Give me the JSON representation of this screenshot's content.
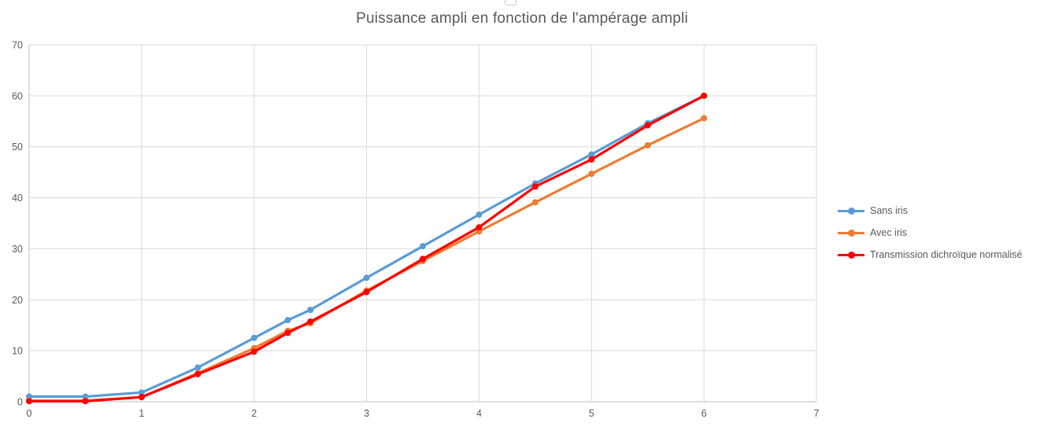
{
  "chart": {
    "title": "Puissance ampli en fonction de l'ampérage ampli"
  },
  "chart_data": {
    "type": "line",
    "title": "Puissance ampli en fonction de l'ampérage ampli",
    "xlabel": "",
    "ylabel": "",
    "xlim": [
      0,
      7
    ],
    "ylim": [
      0,
      70
    ],
    "x_ticks": [
      0,
      1,
      2,
      3,
      4,
      5,
      6,
      7
    ],
    "y_ticks": [
      0,
      10,
      20,
      30,
      40,
      50,
      60,
      70
    ],
    "grid": true,
    "legend_position": "right",
    "x": [
      0,
      0.5,
      1,
      1.5,
      2,
      2.3,
      2.5,
      3,
      3.5,
      4,
      4.5,
      5,
      5.5,
      6
    ],
    "series": [
      {
        "name": "Sans iris",
        "color": "#5B9BD5",
        "values": [
          1.0,
          1.0,
          1.8,
          6.7,
          12.5,
          16.0,
          18.0,
          24.3,
          30.5,
          36.7,
          42.8,
          48.5,
          54.6,
          60.0
        ]
      },
      {
        "name": "Avec iris",
        "color": "#ED7D31",
        "values": [
          0.2,
          0.2,
          0.9,
          5.6,
          10.5,
          13.9,
          15.4,
          21.8,
          27.6,
          33.4,
          39.1,
          44.7,
          50.3,
          55.6
        ]
      },
      {
        "name": "Transmission dichroïque normalisé",
        "color": "#FF0000",
        "values": [
          0.1,
          0.1,
          0.9,
          5.4,
          9.8,
          13.5,
          15.7,
          21.5,
          28.0,
          34.2,
          42.2,
          47.5,
          54.2,
          60.0
        ]
      }
    ],
    "style": {
      "grid_color": "#D9D9D9",
      "axis_color": "#BFBFBF",
      "tick_text_color": "#595959",
      "title_color": "#595959"
    }
  }
}
